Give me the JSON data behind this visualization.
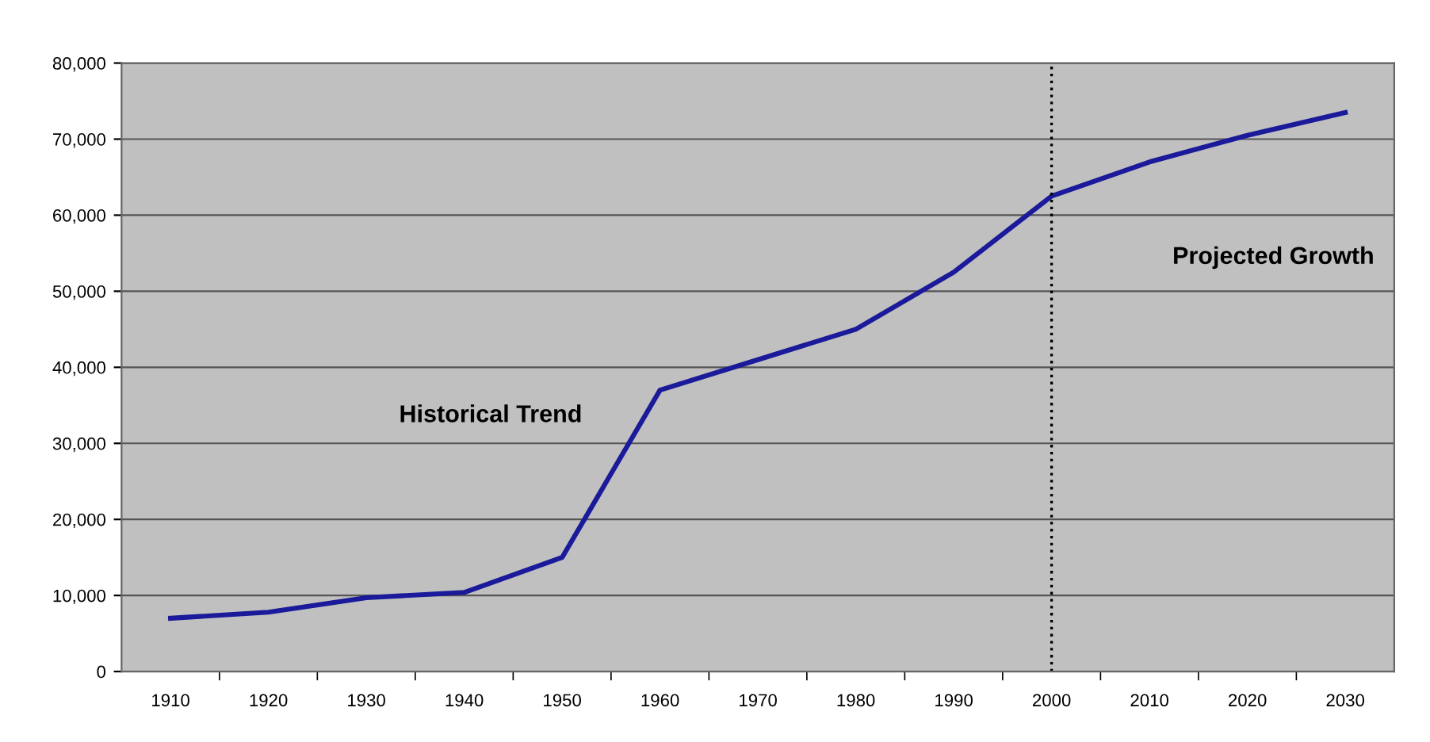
{
  "chart_data": {
    "type": "line",
    "categories": [
      "1910",
      "1920",
      "1930",
      "1940",
      "1950",
      "1960",
      "1970",
      "1980",
      "1990",
      "2000",
      "2010",
      "2020",
      "2030"
    ],
    "series": [
      {
        "color": "#1a1a9a",
        "values": [
          7000,
          7800,
          9700,
          10400,
          15000,
          37000,
          41000,
          45000,
          52500,
          62500,
          67000,
          70500,
          73500
        ]
      }
    ],
    "ylim": [
      0,
      80000
    ],
    "yticks": [
      0,
      {
        "value": 10000,
        "label": "10,000"
      },
      {
        "value": 20000,
        "label": "20,000"
      },
      {
        "value": 30000,
        "label": "30,000"
      },
      {
        "value": 40000,
        "label": "40,000"
      },
      {
        "value": 50000,
        "label": "50,000"
      },
      {
        "value": 60000,
        "label": "60,000"
      },
      {
        "value": 70000,
        "label": "70,000"
      },
      {
        "value": 80000,
        "label": "80,000"
      }
    ],
    "grid": "y",
    "ref_lines": [
      {
        "axis": "x",
        "value": "2000",
        "color": "#000000",
        "line_style": "dotted"
      }
    ],
    "annotations": [
      "Historical Trend",
      "Projected Growth"
    ]
  }
}
